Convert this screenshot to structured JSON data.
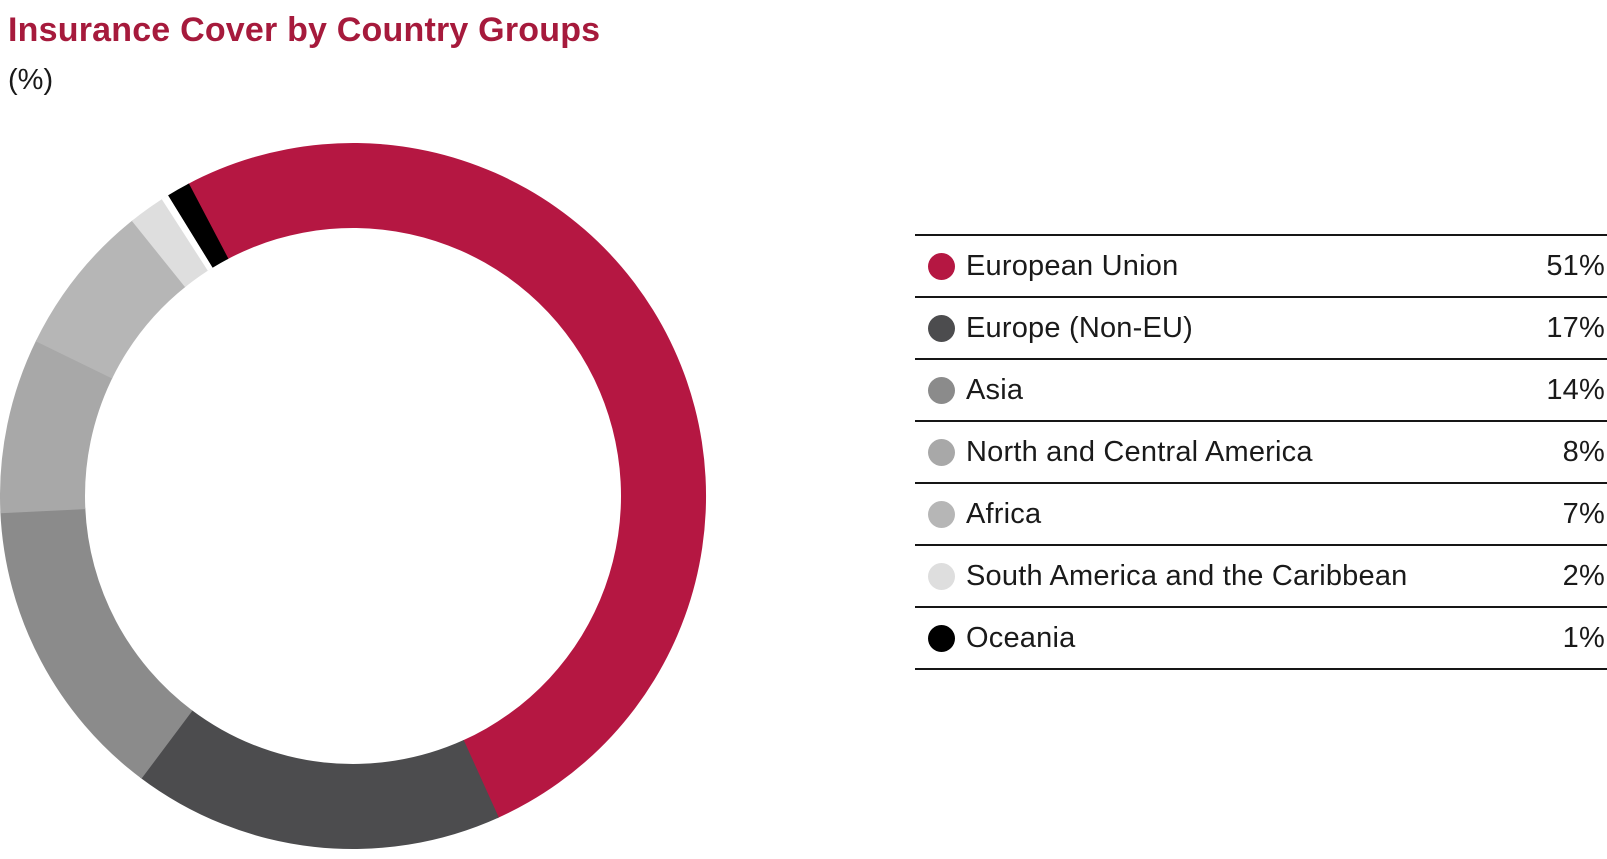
{
  "header": {
    "title": "Insurance Cover by Country Groups",
    "subtitle": "(%)"
  },
  "colors": {
    "title": "#a61a3c",
    "text": "#1a1a1a",
    "rule": "#161616",
    "background": "#ffffff"
  },
  "chart_data": {
    "type": "pie",
    "title": "Insurance Cover by Country Groups",
    "unit": "%",
    "donut": true,
    "start_angle_deg": -28,
    "clockwise": true,
    "inner_radius_ratio": 0.76,
    "legend_position": "right",
    "separator": {
      "between": [
        "South America and the Caribbean",
        "Oceania"
      ],
      "color": "#ffffff",
      "width_deg": 1.2
    },
    "series": [
      {
        "label": "European Union",
        "value": 51,
        "color": "#b51742"
      },
      {
        "label": "Europe (Non-EU)",
        "value": 17,
        "color": "#4c4c4e"
      },
      {
        "label": "Asia",
        "value": 14,
        "color": "#8b8b8b"
      },
      {
        "label": "North and Central America",
        "value": 8,
        "color": "#a8a8a8"
      },
      {
        "label": "Africa",
        "value": 7,
        "color": "#b6b6b6"
      },
      {
        "label": "South America and the Caribbean",
        "value": 2,
        "color": "#dedede"
      },
      {
        "label": "Oceania",
        "value": 1,
        "color": "#000000"
      }
    ]
  },
  "legend": {
    "rows": [
      {
        "label": "European Union",
        "value": "51%"
      },
      {
        "label": "Europe (Non-EU)",
        "value": "17%"
      },
      {
        "label": "Asia",
        "value": "14%"
      },
      {
        "label": "North and Central America",
        "value": "8%"
      },
      {
        "label": "Africa",
        "value": "7%"
      },
      {
        "label": "South America and the Caribbean",
        "value": "2%"
      },
      {
        "label": "Oceania",
        "value": "1%"
      }
    ]
  }
}
